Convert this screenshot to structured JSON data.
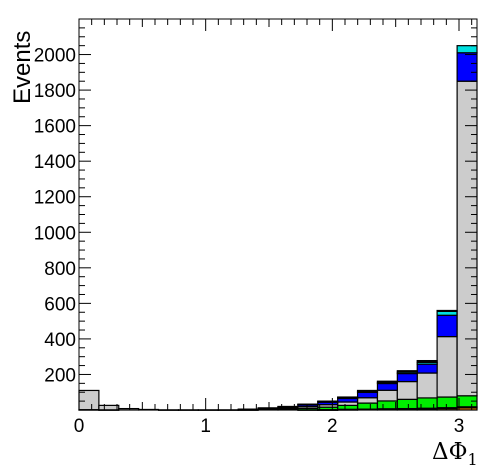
{
  "chart_data": {
    "type": "bar",
    "stacked": true,
    "histogram": true,
    "x": [
      0.0,
      0.157,
      0.314,
      0.471,
      0.628,
      0.785,
      0.942,
      1.099,
      1.257,
      1.414,
      1.571,
      1.728,
      1.885,
      2.042,
      2.199,
      2.356,
      2.513,
      2.67,
      2.827,
      2.985
    ],
    "bin_width": 0.157,
    "xlim": [
      0,
      3.142
    ],
    "ylim": [
      0,
      2200
    ],
    "x_ticks": [
      "0",
      "1",
      "2",
      "3"
    ],
    "y_ticks": [
      "200",
      "400",
      "600",
      "800",
      "1000",
      "1200",
      "1400",
      "1600",
      "1800",
      "2000"
    ],
    "xlabel": "ΔΦ",
    "xlabel_subscript": "1",
    "ylabel": "Events",
    "grid": false,
    "series": [
      {
        "color": "#ff8c00",
        "values": [
          2,
          1,
          0,
          0,
          0,
          0,
          0,
          0,
          0,
          0,
          0,
          1,
          1,
          2,
          3,
          4,
          5,
          6,
          8,
          12
        ]
      },
      {
        "color": "#e31a1c",
        "values": [
          0,
          0,
          0,
          0,
          0,
          0,
          0,
          0,
          0,
          0,
          0,
          0,
          1,
          2,
          2,
          3,
          3,
          4,
          5,
          6
        ]
      },
      {
        "color": "#00ee00",
        "values": [
          0,
          0,
          0,
          0,
          0,
          0,
          0,
          0,
          1,
          3,
          5,
          8,
          14,
          22,
          34,
          44,
          52,
          58,
          60,
          62
        ]
      },
      {
        "color": "#cccccc",
        "values": [
          108,
          25,
          8,
          3,
          1,
          1,
          1,
          1,
          2,
          4,
          6,
          10,
          14,
          19,
          30,
          60,
          100,
          140,
          340,
          1770
        ]
      },
      {
        "color": "#0000ff",
        "values": [
          0,
          0,
          0,
          0,
          0,
          0,
          0,
          0,
          2,
          4,
          7,
          10,
          14,
          20,
          30,
          38,
          45,
          50,
          120,
          160
        ]
      },
      {
        "color": "#00e0e0",
        "values": [
          0,
          0,
          0,
          0,
          0,
          0,
          0,
          0,
          0,
          0,
          1,
          2,
          3,
          4,
          6,
          7,
          8,
          10,
          22,
          40
        ]
      },
      {
        "color": "#000000",
        "values": [
          0,
          0,
          0,
          0,
          0,
          0,
          0,
          0,
          0,
          1,
          1,
          2,
          3,
          4,
          5,
          6,
          8,
          10,
          5,
          0
        ]
      }
    ]
  }
}
